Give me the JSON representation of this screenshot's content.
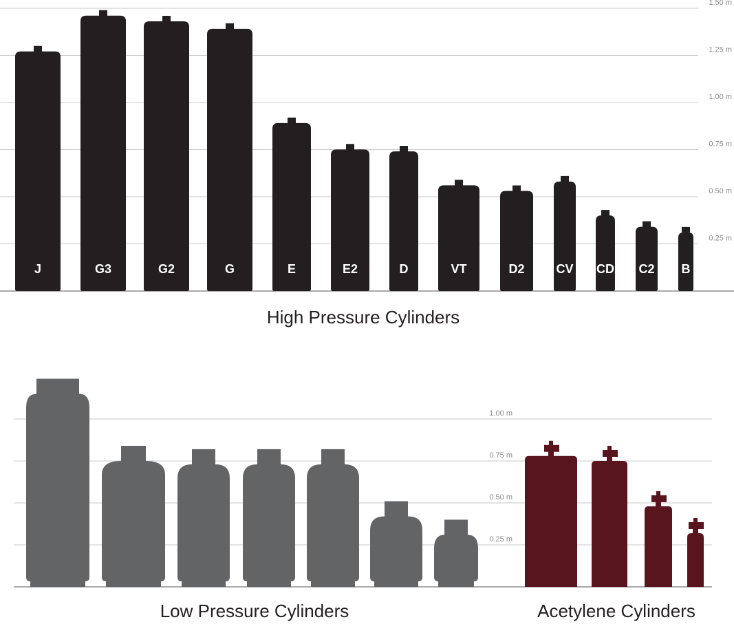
{
  "chart_data": [
    {
      "type": "cylinder",
      "title": "High Pressure Cylinders",
      "shape": "high-pressure",
      "color": "#231f20",
      "label_color": "#ffffff",
      "categories": [
        "J",
        "G3",
        "G2",
        "G",
        "E",
        "E2",
        "D",
        "VT",
        "D2",
        "CV",
        "CD",
        "C2",
        "B"
      ],
      "values": [
        1.3,
        1.49,
        1.46,
        1.42,
        0.92,
        0.78,
        0.77,
        0.59,
        0.56,
        0.61,
        0.43,
        0.37,
        0.34
      ],
      "ylim": [
        0,
        1.5
      ],
      "yticks": [
        {
          "value": 0.25,
          "label": "0.25 m"
        },
        {
          "value": 0.5,
          "label": "0.50 m"
        },
        {
          "value": 0.75,
          "label": "0.75 m"
        },
        {
          "value": 1.0,
          "label": "1.00 m"
        },
        {
          "value": 1.25,
          "label": "1.25 m"
        },
        {
          "value": 1.5,
          "label": "1.50 m"
        }
      ],
      "grid": true
    },
    {
      "type": "cylinder",
      "title": "Low Pressure Cylinders",
      "shape": "low-pressure",
      "color": "#636466",
      "values": [
        1.24,
        0.84,
        0.82,
        0.82,
        0.82,
        0.51,
        0.4
      ],
      "ylim": [
        0,
        1.0
      ],
      "yticks": [
        {
          "value": 0.25,
          "label": "0.25 m"
        },
        {
          "value": 0.5,
          "label": "0.50 m"
        },
        {
          "value": 0.75,
          "label": "0.75 m"
        },
        {
          "value": 1.0,
          "label": "1.00 m"
        }
      ],
      "grid": true
    },
    {
      "type": "cylinder",
      "title": "Acetylene Cylinders",
      "shape": "acetylene",
      "color": "#58151e",
      "values": [
        0.87,
        0.84,
        0.57,
        0.41
      ]
    }
  ]
}
